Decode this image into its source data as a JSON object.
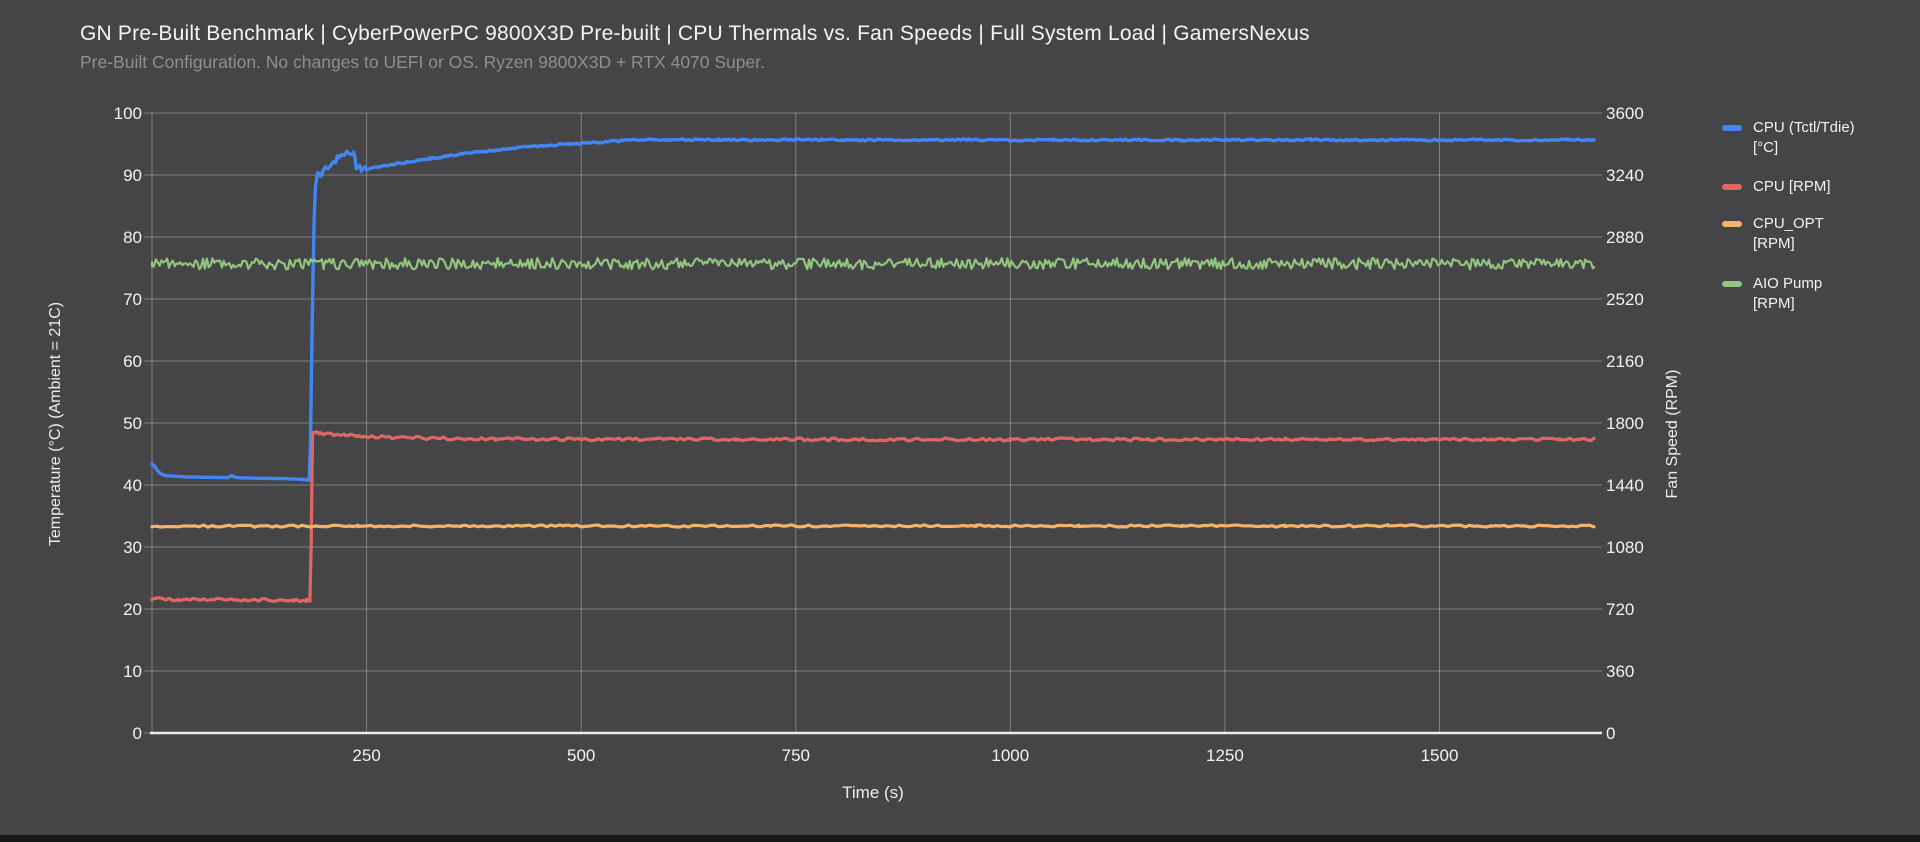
{
  "header": {
    "title": "GN Pre-Built Benchmark | CyberPowerPC 9800X3D Pre-built | CPU Thermals vs. Fan Speeds | Full System Load | GamersNexus",
    "subtitle": "Pre-Built Configuration. No changes to UEFI or OS. Ryzen 9800X3D + RTX 4070 Super."
  },
  "chart_data": {
    "type": "line",
    "title": "GN Pre-Built Benchmark | CyberPowerPC 9800X3D Pre-built | CPU Thermals vs. Fan Speeds | Full System Load | GamersNexus",
    "subtitle": "Pre-Built Configuration. No changes to UEFI or OS. Ryzen 9800X3D + RTX 4070 Super.",
    "grid": true,
    "legend_position": "right",
    "background": "#454547",
    "x_axis": {
      "label": "Time (s)",
      "range": [
        0,
        1680
      ],
      "ticks": [
        250,
        500,
        750,
        1000,
        1250,
        1500
      ],
      "gridlines": [
        0,
        250,
        500,
        750,
        1000,
        1250,
        1500
      ]
    },
    "y_axis_left": {
      "label": "Temperature (°C) (Ambient = 21C)",
      "range": [
        0,
        100
      ],
      "ticks": [
        0,
        10,
        20,
        30,
        40,
        50,
        60,
        70,
        80,
        90,
        100
      ]
    },
    "y_axis_right": {
      "label": "Fan Speed (RPM)",
      "range": [
        0,
        3600
      ],
      "ticks": [
        0,
        360,
        720,
        1080,
        1440,
        1800,
        2160,
        2520,
        2880,
        3240,
        3600
      ]
    },
    "series": [
      {
        "name": "CPU (Tctl/Tdie) [°C]",
        "legend_lines": [
          "CPU (Tctl/Tdie)",
          "[°C]"
        ],
        "axis": "left",
        "unit": "°C",
        "color": "#4285F4",
        "width": 3.4,
        "noise": 0.14,
        "noise_from": 260,
        "sample_step": 3,
        "points": [
          [
            0,
            43.4
          ],
          [
            3,
            43.0
          ],
          [
            6,
            42.4
          ],
          [
            10,
            41.8
          ],
          [
            16,
            41.5
          ],
          [
            40,
            41.3
          ],
          [
            80,
            41.2
          ],
          [
            88,
            41.2
          ],
          [
            93,
            41.5
          ],
          [
            98,
            41.2
          ],
          [
            120,
            41.1
          ],
          [
            160,
            41.0
          ],
          [
            175,
            40.9
          ],
          [
            183,
            40.8
          ],
          [
            184.5,
            46
          ],
          [
            186,
            60
          ],
          [
            187.5,
            73
          ],
          [
            189,
            83
          ],
          [
            190.5,
            88.3
          ],
          [
            193,
            90.4
          ],
          [
            195,
            90.0
          ],
          [
            197,
            89.8
          ],
          [
            199,
            90.6
          ],
          [
            202,
            91.3
          ],
          [
            205,
            91.0
          ],
          [
            208,
            91.5
          ],
          [
            211,
            92.1
          ],
          [
            214,
            92.0
          ],
          [
            216,
            93.1
          ],
          [
            218,
            92.8
          ],
          [
            221,
            93.3
          ],
          [
            224,
            93.2
          ],
          [
            227,
            93.8
          ],
          [
            230,
            93.4
          ],
          [
            233,
            93.3
          ],
          [
            235,
            93.7
          ],
          [
            236.5,
            92.8
          ],
          [
            238,
            91.0
          ],
          [
            240,
            91.3
          ],
          [
            242,
            91.5
          ],
          [
            244,
            90.6
          ],
          [
            246,
            91.0
          ],
          [
            248,
            91.3
          ],
          [
            250,
            90.8
          ],
          [
            253,
            91.0
          ],
          [
            257,
            91.2
          ],
          [
            263,
            91.3
          ],
          [
            272,
            91.5
          ],
          [
            283,
            91.8
          ],
          [
            295,
            92.0
          ],
          [
            310,
            92.4
          ],
          [
            325,
            92.7
          ],
          [
            342,
            93.0
          ],
          [
            360,
            93.4
          ],
          [
            380,
            93.7
          ],
          [
            400,
            94.0
          ],
          [
            425,
            94.4
          ],
          [
            455,
            94.7
          ],
          [
            485,
            95.0
          ],
          [
            515,
            95.2
          ],
          [
            545,
            95.5
          ],
          [
            565,
            95.7
          ],
          [
            585,
            95.8
          ],
          [
            600,
            95.6
          ],
          [
            620,
            95.7
          ],
          [
            660,
            95.7
          ],
          [
            700,
            95.6
          ],
          [
            740,
            95.7
          ],
          [
            780,
            95.7
          ],
          [
            820,
            95.6
          ],
          [
            860,
            95.7
          ],
          [
            900,
            95.6
          ],
          [
            950,
            95.7
          ],
          [
            1000,
            95.6
          ],
          [
            1050,
            95.7
          ],
          [
            1100,
            95.6
          ],
          [
            1150,
            95.7
          ],
          [
            1200,
            95.6
          ],
          [
            1250,
            95.7
          ],
          [
            1300,
            95.6
          ],
          [
            1350,
            95.7
          ],
          [
            1400,
            95.6
          ],
          [
            1450,
            95.7
          ],
          [
            1500,
            95.6
          ],
          [
            1550,
            95.7
          ],
          [
            1600,
            95.6
          ],
          [
            1650,
            95.7
          ],
          [
            1680,
            95.6
          ]
        ]
      },
      {
        "name": "CPU [RPM]",
        "legend_lines": [
          "CPU [RPM]"
        ],
        "axis": "right",
        "unit": "RPM",
        "color": "#E06666",
        "width": 3.2,
        "noise": 8,
        "noise_from": 0,
        "sample_step": 4,
        "points": [
          [
            0,
            778
          ],
          [
            30,
            776
          ],
          [
            60,
            777
          ],
          [
            90,
            774
          ],
          [
            120,
            773
          ],
          [
            150,
            771
          ],
          [
            165,
            770
          ],
          [
            175,
            767
          ],
          [
            180,
            769
          ],
          [
            184,
            771
          ],
          [
            185.5,
            1100
          ],
          [
            187,
            1740
          ],
          [
            190,
            1748
          ],
          [
            195,
            1742
          ],
          [
            202,
            1737
          ],
          [
            212,
            1734
          ],
          [
            225,
            1729
          ],
          [
            240,
            1725
          ],
          [
            258,
            1721
          ],
          [
            280,
            1717
          ],
          [
            310,
            1713
          ],
          [
            350,
            1710
          ],
          [
            400,
            1708
          ],
          [
            460,
            1706
          ],
          [
            530,
            1705
          ],
          [
            600,
            1706
          ],
          [
            680,
            1704
          ],
          [
            760,
            1705
          ],
          [
            840,
            1704
          ],
          [
            920,
            1706
          ],
          [
            1000,
            1704
          ],
          [
            1080,
            1705
          ],
          [
            1160,
            1704
          ],
          [
            1240,
            1705
          ],
          [
            1320,
            1704
          ],
          [
            1400,
            1705
          ],
          [
            1480,
            1704
          ],
          [
            1560,
            1705
          ],
          [
            1640,
            1704
          ],
          [
            1680,
            1705
          ]
        ]
      },
      {
        "name": "CPU_OPT [RPM]",
        "legend_lines": [
          "CPU_OPT",
          "[RPM]"
        ],
        "axis": "right",
        "unit": "RPM",
        "color": "#F6B26B",
        "width": 3.2,
        "noise": 6,
        "noise_from": 0,
        "sample_step": 5,
        "points": [
          [
            0,
            1202
          ],
          [
            120,
            1200
          ],
          [
            240,
            1203
          ],
          [
            360,
            1201
          ],
          [
            480,
            1203
          ],
          [
            600,
            1201
          ],
          [
            720,
            1203
          ],
          [
            840,
            1202
          ],
          [
            960,
            1203
          ],
          [
            1080,
            1201
          ],
          [
            1200,
            1203
          ],
          [
            1320,
            1201
          ],
          [
            1440,
            1203
          ],
          [
            1560,
            1202
          ],
          [
            1680,
            1202
          ]
        ]
      },
      {
        "name": "AIO Pump [RPM]",
        "legend_lines": [
          "AIO Pump",
          "[RPM]"
        ],
        "axis": "right",
        "unit": "RPM",
        "color": "#93C47D",
        "width": 2.2,
        "noise": 32,
        "noise_from": 0,
        "sample_step": 2.2,
        "points": [
          [
            0,
            2725
          ],
          [
            200,
            2724
          ],
          [
            400,
            2726
          ],
          [
            600,
            2725
          ],
          [
            800,
            2724
          ],
          [
            1000,
            2726
          ],
          [
            1200,
            2725
          ],
          [
            1400,
            2724
          ],
          [
            1680,
            2725
          ]
        ]
      }
    ]
  }
}
